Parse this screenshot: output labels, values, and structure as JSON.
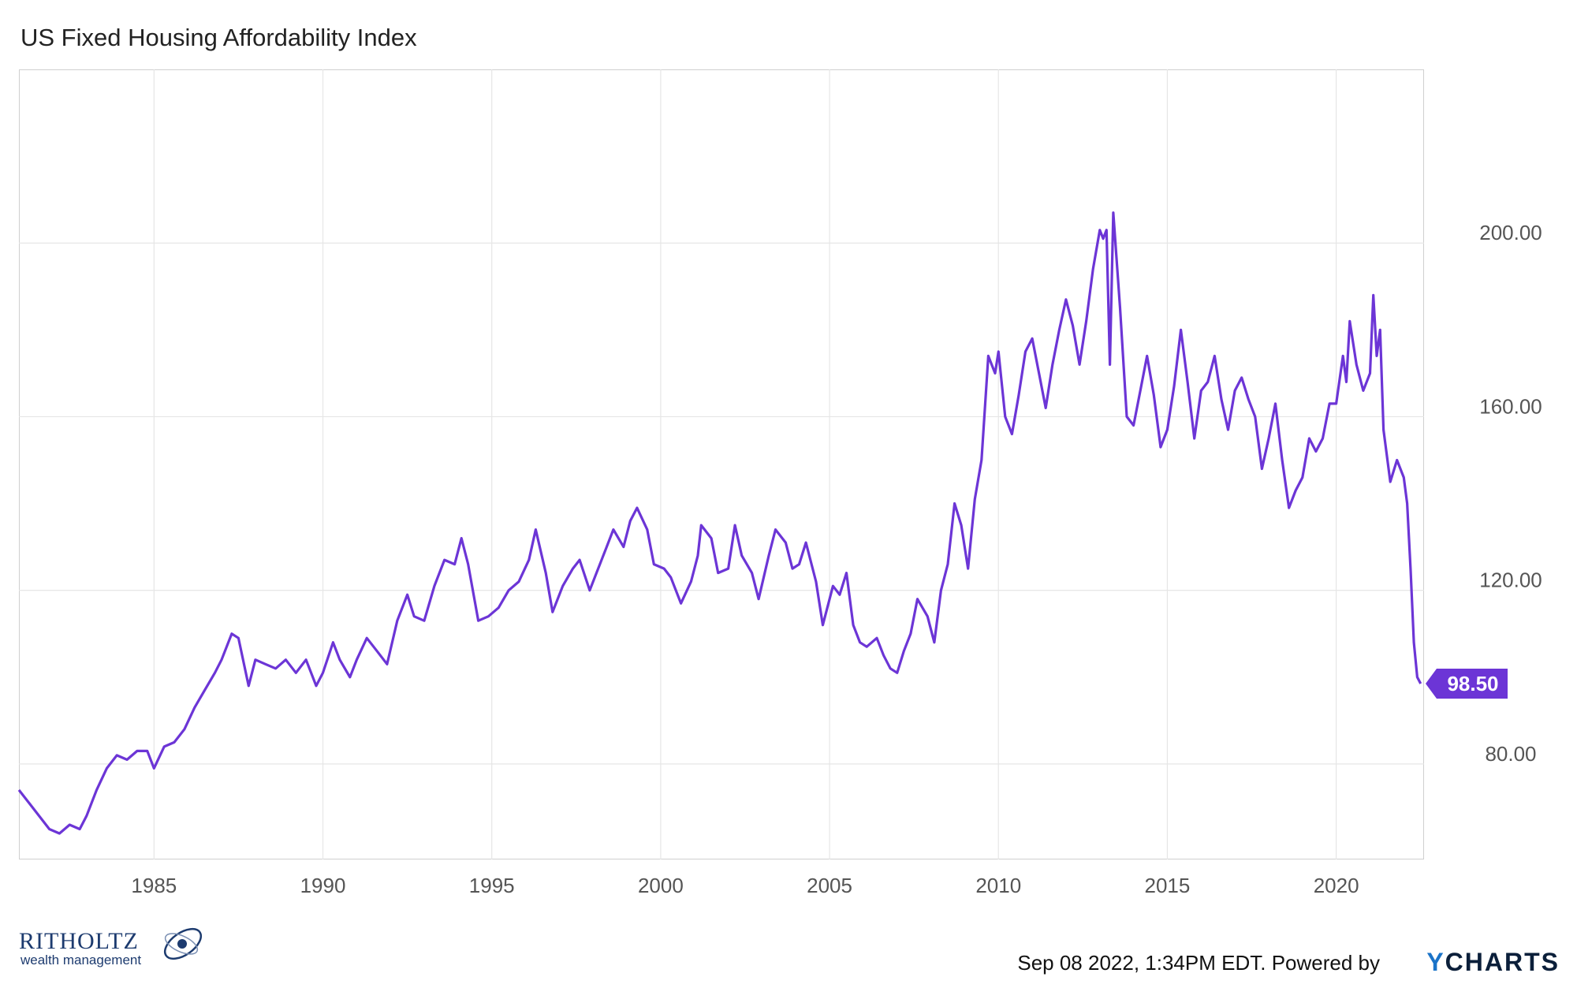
{
  "title": "US Fixed Housing Affordability Index",
  "footer": {
    "timestamp": "Sep 08 2022, 1:34PM EDT.",
    "powered_by": "Powered by",
    "provider_y": "Y",
    "provider_rest": "CHARTS"
  },
  "brand": {
    "name": "RITHOLTZ",
    "subtitle": "wealth management"
  },
  "colors": {
    "series": "#6c35d6",
    "grid": "#e6e6e6",
    "axis_text": "#555555"
  },
  "chart_data": {
    "type": "line",
    "title": "US Fixed Housing Affordability Index",
    "xlabel": "",
    "ylabel": "",
    "xlim": [
      1981.0,
      2022.6
    ],
    "ylim": [
      58,
      240
    ],
    "x_ticks": [
      1985,
      1990,
      1995,
      2000,
      2005,
      2010,
      2015,
      2020
    ],
    "x_tick_labels": [
      "1985",
      "1990",
      "1995",
      "2000",
      "2005",
      "2010",
      "2015",
      "2020"
    ],
    "y_ticks": [
      80,
      120,
      160,
      200
    ],
    "y_tick_labels": [
      "80.00",
      "120.00",
      "160.00",
      "200.00"
    ],
    "grid": true,
    "last_value_label": "98.50",
    "series": [
      {
        "values": [
          [
            1981.0,
            74
          ],
          [
            1981.3,
            71
          ],
          [
            1981.6,
            68
          ],
          [
            1981.9,
            65
          ],
          [
            1982.2,
            64
          ],
          [
            1982.5,
            66
          ],
          [
            1982.8,
            65
          ],
          [
            1983.0,
            68
          ],
          [
            1983.3,
            74
          ],
          [
            1983.6,
            79
          ],
          [
            1983.9,
            82
          ],
          [
            1984.2,
            81
          ],
          [
            1984.5,
            83
          ],
          [
            1984.8,
            83
          ],
          [
            1985.0,
            79
          ],
          [
            1985.3,
            84
          ],
          [
            1985.6,
            85
          ],
          [
            1985.9,
            88
          ],
          [
            1986.2,
            93
          ],
          [
            1986.5,
            97
          ],
          [
            1986.8,
            101
          ],
          [
            1987.0,
            104
          ],
          [
            1987.3,
            110
          ],
          [
            1987.5,
            109
          ],
          [
            1987.8,
            98
          ],
          [
            1988.0,
            104
          ],
          [
            1988.3,
            103
          ],
          [
            1988.6,
            102
          ],
          [
            1988.9,
            104
          ],
          [
            1989.2,
            101
          ],
          [
            1989.5,
            104
          ],
          [
            1989.8,
            98
          ],
          [
            1990.0,
            101
          ],
          [
            1990.3,
            108
          ],
          [
            1990.5,
            104
          ],
          [
            1990.8,
            100
          ],
          [
            1991.0,
            104
          ],
          [
            1991.3,
            109
          ],
          [
            1991.6,
            106
          ],
          [
            1991.9,
            103
          ],
          [
            1992.2,
            113
          ],
          [
            1992.5,
            119
          ],
          [
            1992.7,
            114
          ],
          [
            1993.0,
            113
          ],
          [
            1993.3,
            121
          ],
          [
            1993.6,
            127
          ],
          [
            1993.9,
            126
          ],
          [
            1994.1,
            132
          ],
          [
            1994.3,
            126
          ],
          [
            1994.6,
            113
          ],
          [
            1994.9,
            114
          ],
          [
            1995.2,
            116
          ],
          [
            1995.5,
            120
          ],
          [
            1995.8,
            122
          ],
          [
            1996.1,
            127
          ],
          [
            1996.3,
            134
          ],
          [
            1996.6,
            124
          ],
          [
            1996.8,
            115
          ],
          [
            1997.1,
            121
          ],
          [
            1997.4,
            125
          ],
          [
            1997.6,
            127
          ],
          [
            1997.9,
            120
          ],
          [
            1998.1,
            124
          ],
          [
            1998.4,
            130
          ],
          [
            1998.6,
            134
          ],
          [
            1998.9,
            130
          ],
          [
            1999.1,
            136
          ],
          [
            1999.3,
            139
          ],
          [
            1999.6,
            134
          ],
          [
            1999.8,
            126
          ],
          [
            2000.1,
            125
          ],
          [
            2000.3,
            123
          ],
          [
            2000.6,
            117
          ],
          [
            2000.9,
            122
          ],
          [
            2001.1,
            128
          ],
          [
            2001.2,
            135
          ],
          [
            2001.5,
            132
          ],
          [
            2001.7,
            124
          ],
          [
            2002.0,
            125
          ],
          [
            2002.2,
            135
          ],
          [
            2002.4,
            128
          ],
          [
            2002.7,
            124
          ],
          [
            2002.9,
            118
          ],
          [
            2003.2,
            128
          ],
          [
            2003.4,
            134
          ],
          [
            2003.7,
            131
          ],
          [
            2003.9,
            125
          ],
          [
            2004.1,
            126
          ],
          [
            2004.3,
            131
          ],
          [
            2004.6,
            122
          ],
          [
            2004.8,
            112
          ],
          [
            2005.1,
            121
          ],
          [
            2005.3,
            119
          ],
          [
            2005.5,
            124
          ],
          [
            2005.7,
            112
          ],
          [
            2005.9,
            108
          ],
          [
            2006.1,
            107
          ],
          [
            2006.4,
            109
          ],
          [
            2006.6,
            105
          ],
          [
            2006.8,
            102
          ],
          [
            2007.0,
            101
          ],
          [
            2007.2,
            106
          ],
          [
            2007.4,
            110
          ],
          [
            2007.6,
            118
          ],
          [
            2007.9,
            114
          ],
          [
            2008.1,
            108
          ],
          [
            2008.3,
            120
          ],
          [
            2008.5,
            126
          ],
          [
            2008.7,
            140
          ],
          [
            2008.9,
            135
          ],
          [
            2009.1,
            125
          ],
          [
            2009.3,
            141
          ],
          [
            2009.5,
            150
          ],
          [
            2009.7,
            174
          ],
          [
            2009.9,
            170
          ],
          [
            2010.0,
            175
          ],
          [
            2010.2,
            160
          ],
          [
            2010.4,
            156
          ],
          [
            2010.6,
            165
          ],
          [
            2010.8,
            175
          ],
          [
            2011.0,
            178
          ],
          [
            2011.2,
            170
          ],
          [
            2011.4,
            162
          ],
          [
            2011.6,
            172
          ],
          [
            2011.8,
            180
          ],
          [
            2012.0,
            187
          ],
          [
            2012.2,
            181
          ],
          [
            2012.4,
            172
          ],
          [
            2012.6,
            182
          ],
          [
            2012.8,
            194
          ],
          [
            2013.0,
            203
          ],
          [
            2013.1,
            201
          ],
          [
            2013.2,
            203
          ],
          [
            2013.3,
            172
          ],
          [
            2013.4,
            207
          ],
          [
            2013.6,
            185
          ],
          [
            2013.8,
            160
          ],
          [
            2014.0,
            158
          ],
          [
            2014.2,
            166
          ],
          [
            2014.4,
            174
          ],
          [
            2014.6,
            165
          ],
          [
            2014.8,
            153
          ],
          [
            2015.0,
            157
          ],
          [
            2015.2,
            167
          ],
          [
            2015.4,
            180
          ],
          [
            2015.6,
            168
          ],
          [
            2015.8,
            155
          ],
          [
            2016.0,
            166
          ],
          [
            2016.2,
            168
          ],
          [
            2016.4,
            174
          ],
          [
            2016.6,
            164
          ],
          [
            2016.8,
            157
          ],
          [
            2017.0,
            166
          ],
          [
            2017.2,
            169
          ],
          [
            2017.4,
            164
          ],
          [
            2017.6,
            160
          ],
          [
            2017.8,
            148
          ],
          [
            2018.0,
            155
          ],
          [
            2018.2,
            163
          ],
          [
            2018.4,
            150
          ],
          [
            2018.6,
            139
          ],
          [
            2018.8,
            143
          ],
          [
            2019.0,
            146
          ],
          [
            2019.2,
            155
          ],
          [
            2019.4,
            152
          ],
          [
            2019.6,
            155
          ],
          [
            2019.8,
            163
          ],
          [
            2020.0,
            163
          ],
          [
            2020.2,
            174
          ],
          [
            2020.3,
            168
          ],
          [
            2020.4,
            182
          ],
          [
            2020.6,
            172
          ],
          [
            2020.8,
            166
          ],
          [
            2021.0,
            170
          ],
          [
            2021.1,
            188
          ],
          [
            2021.2,
            174
          ],
          [
            2021.3,
            180
          ],
          [
            2021.4,
            157
          ],
          [
            2021.6,
            145
          ],
          [
            2021.8,
            150
          ],
          [
            2022.0,
            146
          ],
          [
            2022.1,
            140
          ],
          [
            2022.2,
            125
          ],
          [
            2022.3,
            108
          ],
          [
            2022.4,
            100
          ],
          [
            2022.5,
            98.5
          ]
        ]
      }
    ]
  }
}
